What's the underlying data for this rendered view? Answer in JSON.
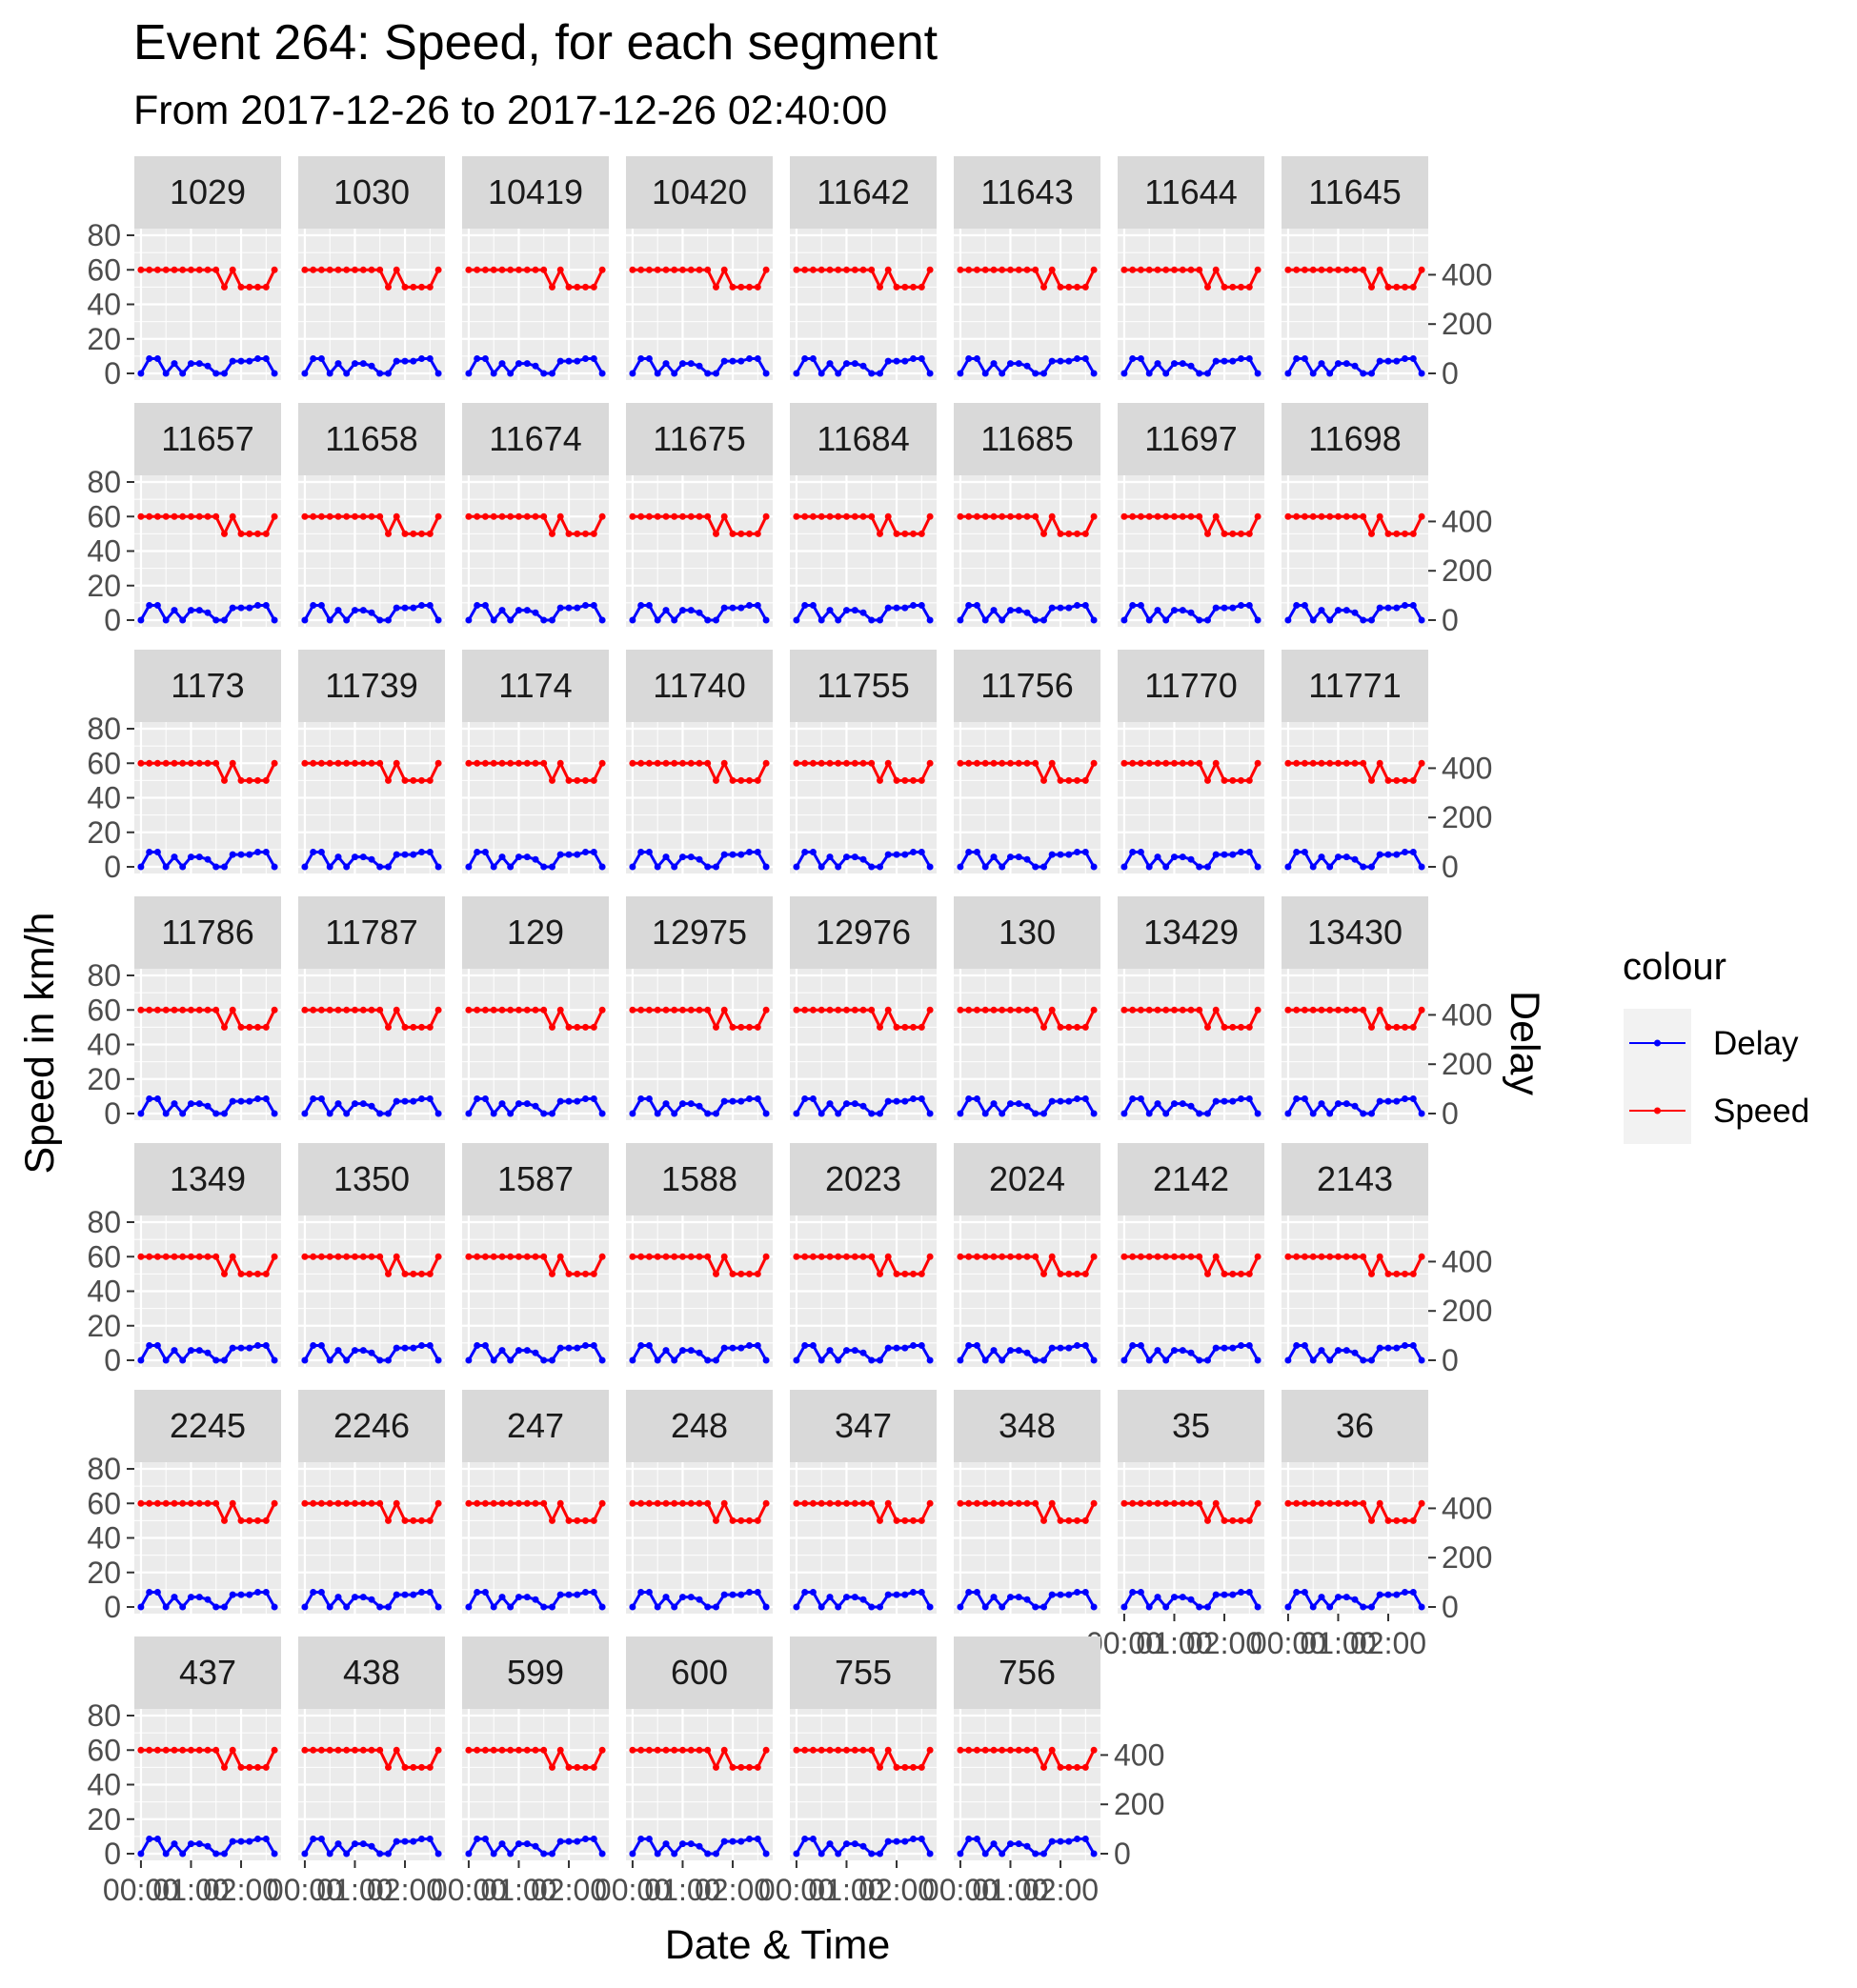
{
  "chart_data": {
    "type": "line",
    "title": "Event 264: Speed, for each segment",
    "subtitle": "From 2017-12-26 to 2017-12-26 02:40:00",
    "xlabel": "Date & Time",
    "ylabel": "Speed in km/h",
    "y2label": "Delay",
    "x_ticks": [
      "00:00",
      "01:00",
      "02:00"
    ],
    "x_range_hours": [
      0,
      2.667
    ],
    "ylim": [
      0,
      80
    ],
    "y_ticks": [
      0,
      20,
      40,
      60,
      80
    ],
    "y2lim": [
      0,
      560
    ],
    "y2_ticks": [
      0,
      200,
      400
    ],
    "grid": true,
    "legend": {
      "title": "colour",
      "placement": "right",
      "entries": [
        {
          "name": "Delay",
          "color": "#0000ff"
        },
        {
          "name": "Speed",
          "color": "#ff0000"
        }
      ]
    },
    "colors": {
      "Delay": "#0000ff",
      "Speed": "#ff0000",
      "panel_bg": "#ebebeb",
      "strip_bg": "#d9d9d9",
      "grid": "#ffffff"
    },
    "x_hours": [
      0,
      0.167,
      0.333,
      0.5,
      0.667,
      0.833,
      1.0,
      1.167,
      1.333,
      1.5,
      1.667,
      1.833,
      2.0,
      2.167,
      2.333,
      2.5,
      2.667
    ],
    "series": [
      {
        "name": "Speed",
        "values": [
          60,
          60,
          60,
          60,
          60,
          60,
          60,
          60,
          60,
          60,
          50,
          60,
          50,
          50,
          50,
          50,
          60
        ]
      },
      {
        "name": "Delay",
        "values": [
          0,
          60,
          60,
          0,
          40,
          0,
          40,
          40,
          30,
          0,
          0,
          50,
          50,
          50,
          60,
          60,
          0
        ]
      }
    ],
    "segments": [
      "1029",
      "1030",
      "10419",
      "10420",
      "11642",
      "11643",
      "11644",
      "11645",
      "11657",
      "11658",
      "11674",
      "11675",
      "11684",
      "11685",
      "11697",
      "11698",
      "1173",
      "11739",
      "1174",
      "11740",
      "11755",
      "11756",
      "11770",
      "11771",
      "11786",
      "11787",
      "129",
      "12975",
      "12976",
      "130",
      "13429",
      "13430",
      "1349",
      "1350",
      "1587",
      "1588",
      "2023",
      "2024",
      "2142",
      "2143",
      "2245",
      "2246",
      "247",
      "248",
      "347",
      "348",
      "35",
      "36",
      "437",
      "438",
      "599",
      "600",
      "755",
      "756"
    ]
  }
}
